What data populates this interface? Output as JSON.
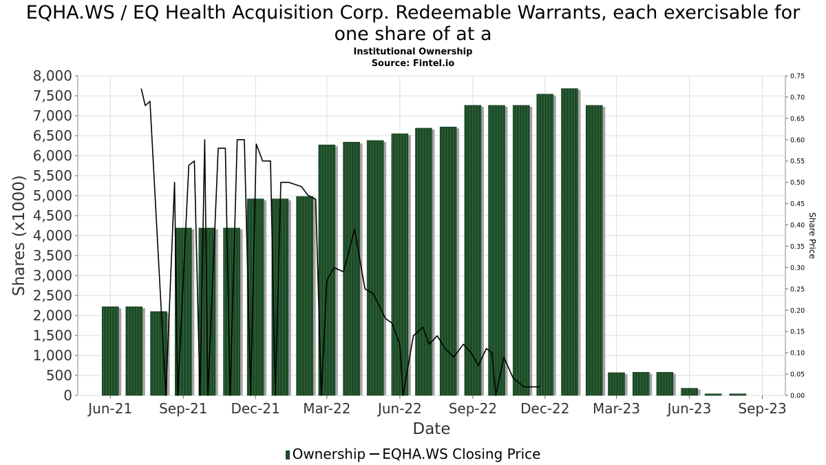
{
  "title_line1": "EQHA.WS / EQ Health Acquisition Corp. Redeemable Warrants, each exercisable for",
  "title_line2": "one share of at a",
  "subtitle1": "Institutional Ownership",
  "subtitle2": "Source: Fintel.io",
  "legend": {
    "ownership": "Ownership",
    "price": "EQHA.WS Closing Price"
  },
  "colors": {
    "bar": "#1e4a28",
    "bar_stripe": "#2f6a3a",
    "bar_shadow": "#a5a5a5",
    "price_line": "#000000",
    "grid": "#dddddd"
  },
  "chart_data": {
    "type": "bar",
    "title": "EQHA.WS / EQ Health Acquisition Corp. Redeemable Warrants, each exercisable for one share of at a",
    "xlabel": "Date",
    "ylabel": "Shares (x1000)",
    "y2label": "Share Price",
    "ylim": [
      0,
      8000
    ],
    "y2lim": [
      0,
      0.75
    ],
    "xlim": [
      "2021-04-21",
      "2023-09-30"
    ],
    "grid": true,
    "legend_position": "bottom",
    "x_ticks": [
      {
        "label": "Jun-21",
        "date": "2021-06-01"
      },
      {
        "label": "Sep-21",
        "date": "2021-09-01"
      },
      {
        "label": "Dec-21",
        "date": "2021-12-01"
      },
      {
        "label": "Mar-22",
        "date": "2022-03-01"
      },
      {
        "label": "Jun-22",
        "date": "2022-06-01"
      },
      {
        "label": "Sep-22",
        "date": "2022-09-01"
      },
      {
        "label": "Dec-22",
        "date": "2022-12-01"
      },
      {
        "label": "Mar-23",
        "date": "2023-03-01"
      },
      {
        "label": "Jun-23",
        "date": "2023-06-01"
      },
      {
        "label": "Sep-23",
        "date": "2023-09-01"
      }
    ],
    "y_ticks": [
      {
        "label": "0",
        "value": 0
      },
      {
        "label": "500",
        "value": 500
      },
      {
        "label": "1,000",
        "value": 1000
      },
      {
        "label": "1,500",
        "value": 1500
      },
      {
        "label": "2,000",
        "value": 2000
      },
      {
        "label": "2,500",
        "value": 2500
      },
      {
        "label": "3,000",
        "value": 3000
      },
      {
        "label": "3,500",
        "value": 3500
      },
      {
        "label": "4,000",
        "value": 4000
      },
      {
        "label": "4,500",
        "value": 4500
      },
      {
        "label": "5,000",
        "value": 5000
      },
      {
        "label": "5,500",
        "value": 5500
      },
      {
        "label": "6,000",
        "value": 6000
      },
      {
        "label": "6,500",
        "value": 6500
      },
      {
        "label": "7,000",
        "value": 7000
      },
      {
        "label": "7,500",
        "value": 7500
      },
      {
        "label": "8,000",
        "value": 8000
      }
    ],
    "y2_ticks": [
      {
        "label": "0.00",
        "value": 0
      },
      {
        "label": "0.05",
        "value": 0.05
      },
      {
        "label": "0.10",
        "value": 0.1
      },
      {
        "label": "0.15",
        "value": 0.15
      },
      {
        "label": "0.20",
        "value": 0.2
      },
      {
        "label": "0.25",
        "value": 0.25
      },
      {
        "label": "0.30",
        "value": 0.3
      },
      {
        "label": "0.35",
        "value": 0.35
      },
      {
        "label": "0.40",
        "value": 0.4
      },
      {
        "label": "0.45",
        "value": 0.45
      },
      {
        "label": "0.50",
        "value": 0.5
      },
      {
        "label": "0.55",
        "value": 0.55
      },
      {
        "label": "0.60",
        "value": 0.6
      },
      {
        "label": "0.65",
        "value": 0.65
      },
      {
        "label": "0.70",
        "value": 0.7
      },
      {
        "label": "0.75",
        "value": 0.75
      }
    ],
    "series": [
      {
        "name": "Ownership",
        "type": "bar",
        "points": [
          {
            "x": "2021-06-01",
            "y": 2220
          },
          {
            "x": "2021-07-01",
            "y": 2220
          },
          {
            "x": "2021-08-01",
            "y": 2100
          },
          {
            "x": "2021-09-01",
            "y": 4190
          },
          {
            "x": "2021-10-01",
            "y": 4190
          },
          {
            "x": "2021-11-01",
            "y": 4190
          },
          {
            "x": "2021-12-01",
            "y": 4920
          },
          {
            "x": "2022-01-01",
            "y": 4920
          },
          {
            "x": "2022-02-01",
            "y": 4980
          },
          {
            "x": "2022-03-01",
            "y": 6270
          },
          {
            "x": "2022-04-01",
            "y": 6340
          },
          {
            "x": "2022-05-01",
            "y": 6380
          },
          {
            "x": "2022-06-01",
            "y": 6550
          },
          {
            "x": "2022-07-01",
            "y": 6690
          },
          {
            "x": "2022-08-01",
            "y": 6720
          },
          {
            "x": "2022-09-01",
            "y": 7260
          },
          {
            "x": "2022-10-01",
            "y": 7260
          },
          {
            "x": "2022-11-01",
            "y": 7260
          },
          {
            "x": "2022-12-01",
            "y": 7540
          },
          {
            "x": "2023-01-01",
            "y": 7680
          },
          {
            "x": "2023-02-01",
            "y": 7260
          },
          {
            "x": "2023-03-01",
            "y": 570
          },
          {
            "x": "2023-04-01",
            "y": 580
          },
          {
            "x": "2023-05-01",
            "y": 580
          },
          {
            "x": "2023-06-01",
            "y": 180
          },
          {
            "x": "2023-07-01",
            "y": 40
          },
          {
            "x": "2023-08-01",
            "y": 40
          }
        ]
      },
      {
        "name": "EQHA.WS Closing Price",
        "type": "line",
        "axis": "right",
        "points": [
          {
            "x": "2021-07-10",
            "y": 0.72
          },
          {
            "x": "2021-07-15",
            "y": 0.68
          },
          {
            "x": "2021-07-21",
            "y": 0.69
          },
          {
            "x": "2021-08-10",
            "y": 0.0
          },
          {
            "x": "2021-08-21",
            "y": 0.5
          },
          {
            "x": "2021-08-25",
            "y": 0.0
          },
          {
            "x": "2021-09-08",
            "y": 0.54
          },
          {
            "x": "2021-09-15",
            "y": 0.55
          },
          {
            "x": "2021-09-22",
            "y": 0.0
          },
          {
            "x": "2021-09-28",
            "y": 0.6
          },
          {
            "x": "2021-10-02",
            "y": 0.0
          },
          {
            "x": "2021-10-15",
            "y": 0.58
          },
          {
            "x": "2021-10-24",
            "y": 0.58
          },
          {
            "x": "2021-10-30",
            "y": 0.0
          },
          {
            "x": "2021-11-08",
            "y": 0.6
          },
          {
            "x": "2021-11-17",
            "y": 0.6
          },
          {
            "x": "2021-11-25",
            "y": 0.0
          },
          {
            "x": "2021-12-02",
            "y": 0.59
          },
          {
            "x": "2021-12-10",
            "y": 0.55
          },
          {
            "x": "2021-12-20",
            "y": 0.55
          },
          {
            "x": "2021-12-26",
            "y": 0.0
          },
          {
            "x": "2022-01-02",
            "y": 0.5
          },
          {
            "x": "2022-01-12",
            "y": 0.5
          },
          {
            "x": "2022-01-28",
            "y": 0.49
          },
          {
            "x": "2022-02-05",
            "y": 0.47
          },
          {
            "x": "2022-02-15",
            "y": 0.46
          },
          {
            "x": "2022-02-22",
            "y": 0.0
          },
          {
            "x": "2022-03-01",
            "y": 0.27
          },
          {
            "x": "2022-03-10",
            "y": 0.3
          },
          {
            "x": "2022-03-22",
            "y": 0.29
          },
          {
            "x": "2022-04-05",
            "y": 0.39
          },
          {
            "x": "2022-04-18",
            "y": 0.25
          },
          {
            "x": "2022-04-28",
            "y": 0.24
          },
          {
            "x": "2022-05-14",
            "y": 0.18
          },
          {
            "x": "2022-05-22",
            "y": 0.17
          },
          {
            "x": "2022-06-01",
            "y": 0.12
          },
          {
            "x": "2022-06-05",
            "y": 0.0
          },
          {
            "x": "2022-06-18",
            "y": 0.14
          },
          {
            "x": "2022-06-30",
            "y": 0.16
          },
          {
            "x": "2022-07-08",
            "y": 0.12
          },
          {
            "x": "2022-07-18",
            "y": 0.14
          },
          {
            "x": "2022-07-28",
            "y": 0.11
          },
          {
            "x": "2022-08-08",
            "y": 0.09
          },
          {
            "x": "2022-08-20",
            "y": 0.12
          },
          {
            "x": "2022-08-30",
            "y": 0.1
          },
          {
            "x": "2022-09-08",
            "y": 0.07
          },
          {
            "x": "2022-09-18",
            "y": 0.11
          },
          {
            "x": "2022-09-25",
            "y": 0.1
          },
          {
            "x": "2022-09-30",
            "y": 0.0
          },
          {
            "x": "2022-10-10",
            "y": 0.09
          },
          {
            "x": "2022-10-22",
            "y": 0.04
          },
          {
            "x": "2022-11-05",
            "y": 0.02
          },
          {
            "x": "2022-11-25",
            "y": 0.02
          }
        ]
      }
    ]
  }
}
